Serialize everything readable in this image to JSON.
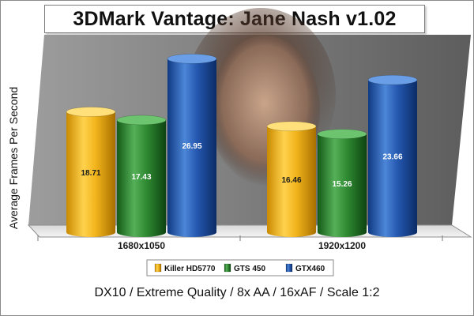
{
  "chart_data": {
    "type": "bar",
    "title": "3DMark Vantage: Jane Nash v1.02",
    "ylabel": "Average Frames Per Second",
    "footer": "DX10 / Extreme Quality / 8x AA / 16xAF / Scale 1:2",
    "categories": [
      "1680x1050",
      "1920x1200"
    ],
    "series": [
      {
        "name": "Killer HD5770",
        "values": [
          18.71,
          16.46
        ],
        "color": "#f0b81c"
      },
      {
        "name": "GTS 450",
        "values": [
          17.43,
          15.26
        ],
        "color": "#2f8a32"
      },
      {
        "name": "GTX460",
        "values": [
          26.95,
          23.66
        ],
        "color": "#2558b0"
      }
    ],
    "ylim": [
      0,
      28
    ],
    "grid": false,
    "legend_position": "bottom",
    "background": "photo of a game character face behind the plot area"
  }
}
